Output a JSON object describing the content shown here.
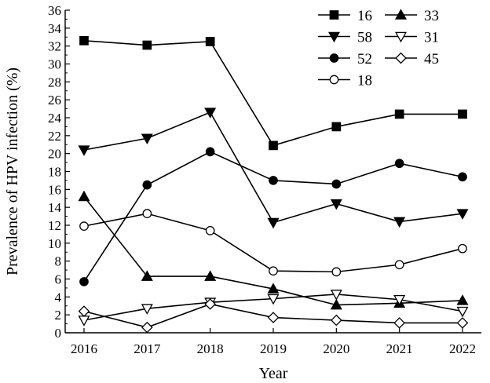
{
  "chart_data": {
    "type": "line",
    "title": "",
    "xlabel": "Year",
    "ylabel": "Prevalence of HPV infection (%)",
    "ylim": [
      0,
      36
    ],
    "yticks": [
      0,
      2,
      4,
      6,
      8,
      10,
      12,
      14,
      16,
      18,
      20,
      22,
      24,
      26,
      28,
      30,
      32,
      34,
      36
    ],
    "categories": [
      "2016",
      "2017",
      "2018",
      "2019",
      "2020",
      "2021",
      "2022"
    ],
    "grid": false,
    "legend_position": "top-right",
    "series": [
      {
        "name": "16",
        "marker": "square-filled",
        "values": [
          32.6,
          32.1,
          32.5,
          20.9,
          23.0,
          24.4,
          24.4
        ]
      },
      {
        "name": "58",
        "marker": "triangle-down-filled",
        "values": [
          20.4,
          21.7,
          24.6,
          12.3,
          14.4,
          12.4,
          13.3
        ]
      },
      {
        "name": "52",
        "marker": "circle-filled",
        "values": [
          5.7,
          16.5,
          20.2,
          17.0,
          16.6,
          18.9,
          17.4
        ]
      },
      {
        "name": "18",
        "marker": "circle-open",
        "values": [
          11.9,
          13.3,
          11.4,
          6.9,
          6.8,
          7.6,
          9.4
        ]
      },
      {
        "name": "33",
        "marker": "triangle-up-filled",
        "values": [
          15.2,
          6.3,
          6.3,
          4.9,
          3.1,
          3.3,
          3.6
        ]
      },
      {
        "name": "31",
        "marker": "triangle-down-open",
        "values": [
          1.4,
          2.7,
          3.4,
          3.8,
          4.3,
          3.7,
          2.4
        ]
      },
      {
        "name": "45",
        "marker": "diamond-open",
        "values": [
          2.4,
          0.6,
          3.2,
          1.7,
          1.4,
          1.1,
          1.1
        ]
      }
    ]
  }
}
